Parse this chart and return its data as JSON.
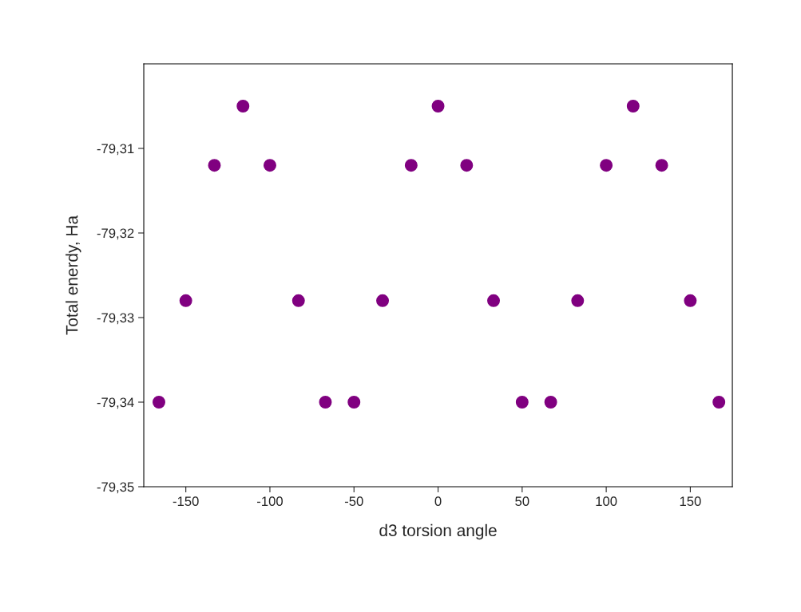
{
  "chart_data": {
    "type": "scatter",
    "xlabel": "d3 torsion angle",
    "ylabel": "Total enerdy, Ha",
    "x": [
      -166,
      -150,
      -133,
      -116,
      -100,
      -83,
      -67,
      -50,
      -33,
      -16,
      0,
      17,
      33,
      50,
      67,
      83,
      100,
      116,
      133,
      150,
      167
    ],
    "series": [
      {
        "color": "#800080",
        "values": [
          -79.34,
          -79.328,
          -79.312,
          -79.305,
          -79.312,
          -79.328,
          -79.34,
          -79.34,
          -79.328,
          -79.312,
          -79.305,
          -79.312,
          -79.328,
          -79.34,
          -79.34,
          -79.328,
          -79.312,
          -79.305,
          -79.312,
          -79.328,
          -79.34
        ]
      }
    ],
    "xlim": [
      -175,
      175
    ],
    "xticks": [
      -150,
      -100,
      -50,
      0,
      50,
      100,
      150
    ],
    "ylim": [
      -79.35,
      -79.3
    ],
    "yticks": [
      {
        "value": -79.35,
        "label": "-79,35"
      },
      {
        "value": -79.34,
        "label": "-79,34"
      },
      {
        "value": -79.33,
        "label": "-79,33"
      },
      {
        "value": -79.32,
        "label": "-79,32"
      },
      {
        "value": -79.31,
        "label": "-79,31"
      }
    ],
    "marker": "circle",
    "grid": false,
    "legend": false
  }
}
